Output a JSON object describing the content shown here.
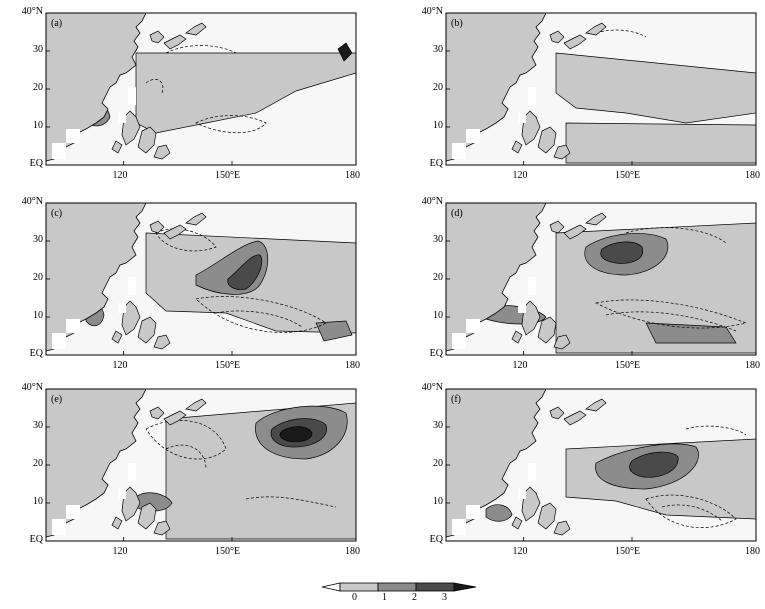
{
  "panels": [
    {
      "id": "a",
      "label": "(a)"
    },
    {
      "id": "b",
      "label": "(b)"
    },
    {
      "id": "c",
      "label": "(c)"
    },
    {
      "id": "d",
      "label": "(d)"
    },
    {
      "id": "e",
      "label": "(e)"
    },
    {
      "id": "f",
      "label": "(f)"
    }
  ],
  "axes": {
    "lat_ticks": [
      "40°N",
      "30",
      "20",
      "10",
      "EQ"
    ],
    "lon_ticks": [
      "120",
      "150°E",
      "180"
    ]
  },
  "colorbar": {
    "labels": [
      "0",
      "1",
      "2",
      "3"
    ],
    "colors": [
      "#ffffff",
      "#c8c8c8",
      "#8c8c8c",
      "#4a4a4a",
      "#1a1a1a"
    ]
  },
  "colors": {
    "land": "#c8c8c8",
    "level1": "#c8c8c8",
    "level2": "#8c8c8c",
    "level3": "#4a4a4a",
    "level4": "#1a1a1a",
    "ocean": "#f7f7f7"
  }
}
